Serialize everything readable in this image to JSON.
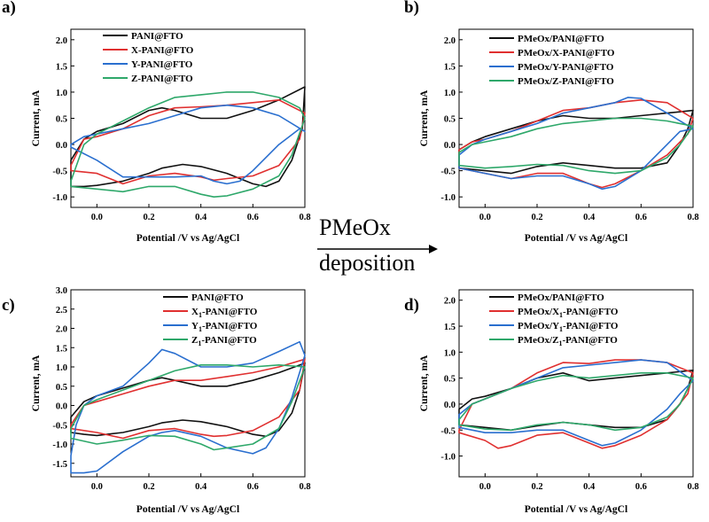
{
  "center": {
    "top_label": "PMeOx",
    "bottom_label": "deposition"
  },
  "colors": {
    "black": "#111111",
    "red": "#e03030",
    "blue": "#2a6fcf",
    "green": "#2ea86a"
  },
  "chart_data": [
    {
      "panel_label": "a)",
      "type": "line",
      "xlabel": "Potential /V vs Ag/AgCl",
      "ylabel": "Current, mA",
      "xlim": [
        -0.1,
        0.8
      ],
      "ylim": [
        -1.2,
        2.2
      ],
      "xticks": [
        "0.0",
        "0.2",
        "0.4",
        "0.6",
        "0.8"
      ],
      "yticks": [
        "-1.0",
        "-0.5",
        "0.0",
        "0.5",
        "1.0",
        "1.5",
        "2.0"
      ],
      "series": [
        {
          "name": "PANI@FTO",
          "color": "#111111",
          "x": [
            -0.1,
            -0.05,
            0.0,
            0.1,
            0.2,
            0.25,
            0.3,
            0.4,
            0.5,
            0.6,
            0.7,
            0.8,
            0.79,
            0.75,
            0.7,
            0.65,
            0.6,
            0.5,
            0.4,
            0.33,
            0.25,
            0.2,
            0.1,
            0.0,
            -0.05,
            -0.1
          ],
          "y": [
            -0.3,
            0.1,
            0.25,
            0.4,
            0.65,
            0.7,
            0.65,
            0.5,
            0.5,
            0.65,
            0.85,
            1.1,
            0.3,
            -0.3,
            -0.7,
            -0.8,
            -0.75,
            -0.55,
            -0.42,
            -0.38,
            -0.45,
            -0.55,
            -0.7,
            -0.78,
            -0.8,
            -0.8
          ]
        },
        {
          "name": "X-PANI@FTO",
          "color": "#e03030",
          "x": [
            -0.1,
            -0.05,
            0.0,
            0.1,
            0.2,
            0.3,
            0.4,
            0.5,
            0.6,
            0.7,
            0.8,
            0.78,
            0.7,
            0.6,
            0.5,
            0.45,
            0.4,
            0.3,
            0.2,
            0.1,
            0.0,
            -0.1
          ],
          "y": [
            -0.4,
            0.1,
            0.15,
            0.3,
            0.55,
            0.7,
            0.72,
            0.75,
            0.8,
            0.85,
            0.6,
            0.1,
            -0.4,
            -0.6,
            -0.65,
            -0.68,
            -0.62,
            -0.55,
            -0.6,
            -0.75,
            -0.55,
            -0.5
          ]
        },
        {
          "name": "Y-PANI@FTO",
          "color": "#2a6fcf",
          "x": [
            -0.1,
            -0.05,
            0.0,
            0.1,
            0.2,
            0.3,
            0.4,
            0.5,
            0.6,
            0.7,
            0.8,
            0.78,
            0.7,
            0.6,
            0.55,
            0.5,
            0.45,
            0.4,
            0.3,
            0.2,
            0.1,
            0.0,
            -0.1
          ],
          "y": [
            0.0,
            0.15,
            0.2,
            0.3,
            0.4,
            0.55,
            0.7,
            0.75,
            0.7,
            0.55,
            0.25,
            0.3,
            0.0,
            -0.5,
            -0.7,
            -0.75,
            -0.7,
            -0.6,
            -0.62,
            -0.62,
            -0.62,
            -0.3,
            -0.05
          ]
        },
        {
          "name": "Z-PANI@FTO",
          "color": "#2ea86a",
          "x": [
            -0.1,
            -0.05,
            0.0,
            0.1,
            0.2,
            0.3,
            0.4,
            0.5,
            0.6,
            0.7,
            0.78,
            0.8,
            0.75,
            0.7,
            0.6,
            0.5,
            0.45,
            0.4,
            0.3,
            0.2,
            0.1,
            0.0,
            -0.1
          ],
          "y": [
            -0.7,
            0.0,
            0.2,
            0.45,
            0.7,
            0.9,
            0.95,
            1.0,
            1.0,
            0.9,
            0.7,
            0.5,
            -0.2,
            -0.6,
            -0.85,
            -0.98,
            -1.0,
            -0.95,
            -0.8,
            -0.8,
            -0.9,
            -0.85,
            -0.8
          ]
        }
      ]
    },
    {
      "panel_label": "b)",
      "type": "line",
      "xlabel": "Potential /V vs Ag/AgCl",
      "ylabel": "Current, mA",
      "xlim": [
        -0.1,
        0.8
      ],
      "ylim": [
        -1.2,
        2.2
      ],
      "xticks": [
        "0.0",
        "0.2",
        "0.4",
        "0.6",
        "0.8"
      ],
      "yticks": [
        "-1.0",
        "-0.5",
        "0.0",
        "0.5",
        "1.0",
        "1.5",
        "2.0"
      ],
      "series": [
        {
          "name": "PMeOx/PANI@FTO",
          "color": "#111111",
          "x": [
            -0.1,
            -0.05,
            0.0,
            0.1,
            0.2,
            0.3,
            0.4,
            0.5,
            0.6,
            0.7,
            0.8,
            0.78,
            0.75,
            0.7,
            0.6,
            0.5,
            0.4,
            0.3,
            0.2,
            0.1,
            0.0,
            -0.1
          ],
          "y": [
            -0.1,
            0.05,
            0.15,
            0.3,
            0.45,
            0.55,
            0.5,
            0.5,
            0.55,
            0.6,
            0.65,
            0.3,
            0.0,
            -0.35,
            -0.45,
            -0.45,
            -0.4,
            -0.35,
            -0.42,
            -0.55,
            -0.5,
            -0.45
          ]
        },
        {
          "name": "PMeOx/X-PANI@FTO",
          "color": "#e03030",
          "x": [
            -0.1,
            -0.05,
            0.0,
            0.1,
            0.2,
            0.3,
            0.4,
            0.5,
            0.6,
            0.7,
            0.8,
            0.78,
            0.7,
            0.6,
            0.5,
            0.45,
            0.4,
            0.3,
            0.2,
            0.1,
            0.0,
            -0.1
          ],
          "y": [
            -0.1,
            0.05,
            0.1,
            0.25,
            0.45,
            0.65,
            0.7,
            0.8,
            0.85,
            0.8,
            0.5,
            0.2,
            -0.2,
            -0.5,
            -0.75,
            -0.82,
            -0.75,
            -0.55,
            -0.55,
            -0.65,
            -0.55,
            -0.45
          ]
        },
        {
          "name": "PMeOx/Y-PANI@FTO",
          "color": "#2a6fcf",
          "x": [
            -0.1,
            -0.05,
            0.0,
            0.1,
            0.2,
            0.3,
            0.4,
            0.5,
            0.55,
            0.6,
            0.7,
            0.8,
            0.75,
            0.7,
            0.6,
            0.5,
            0.45,
            0.4,
            0.3,
            0.2,
            0.1,
            0.0,
            -0.1
          ],
          "y": [
            -0.2,
            0.0,
            0.1,
            0.25,
            0.4,
            0.6,
            0.7,
            0.8,
            0.9,
            0.88,
            0.6,
            0.3,
            0.25,
            0.0,
            -0.5,
            -0.8,
            -0.85,
            -0.75,
            -0.6,
            -0.6,
            -0.65,
            -0.55,
            -0.45
          ]
        },
        {
          "name": "PMeOx/Z-PANI@FTO",
          "color": "#2ea86a",
          "x": [
            -0.1,
            -0.05,
            0.0,
            0.1,
            0.2,
            0.3,
            0.4,
            0.5,
            0.6,
            0.7,
            0.8,
            0.75,
            0.7,
            0.6,
            0.5,
            0.4,
            0.3,
            0.2,
            0.1,
            0.0,
            -0.1
          ],
          "y": [
            -0.15,
            0.0,
            0.05,
            0.15,
            0.3,
            0.4,
            0.45,
            0.5,
            0.5,
            0.45,
            0.35,
            0.0,
            -0.25,
            -0.5,
            -0.55,
            -0.5,
            -0.4,
            -0.38,
            -0.42,
            -0.45,
            -0.4
          ]
        }
      ]
    },
    {
      "panel_label": "c)",
      "type": "line",
      "xlabel": "Potential /V vs Ag/AgCl",
      "ylabel": "Current, mA",
      "xlim": [
        -0.1,
        0.8
      ],
      "ylim": [
        -1.85,
        3.0
      ],
      "xticks": [
        "0.0",
        "0.2",
        "0.4",
        "0.6",
        "0.8"
      ],
      "yticks": [
        "-1.5",
        "-1.0",
        "-0.5",
        "0.0",
        "0.5",
        "1.0",
        "1.5",
        "2.0",
        "2.5",
        "3.0"
      ],
      "series": [
        {
          "name": "PANI@FTO",
          "color": "#111111",
          "x": [
            -0.1,
            -0.05,
            0.0,
            0.1,
            0.2,
            0.25,
            0.3,
            0.4,
            0.5,
            0.6,
            0.7,
            0.8,
            0.78,
            0.75,
            0.7,
            0.65,
            0.6,
            0.5,
            0.4,
            0.33,
            0.25,
            0.2,
            0.1,
            0.0,
            -0.05,
            -0.1
          ],
          "y": [
            -0.3,
            0.1,
            0.25,
            0.45,
            0.65,
            0.72,
            0.65,
            0.5,
            0.5,
            0.65,
            0.85,
            1.1,
            0.4,
            -0.2,
            -0.65,
            -0.8,
            -0.75,
            -0.55,
            -0.42,
            -0.38,
            -0.45,
            -0.55,
            -0.7,
            -0.78,
            -0.75,
            -0.7
          ]
        },
        {
          "name": "X1-PANI@FTO",
          "color": "#e03030",
          "x": [
            -0.1,
            -0.05,
            0.0,
            0.1,
            0.2,
            0.3,
            0.4,
            0.5,
            0.6,
            0.7,
            0.8,
            0.78,
            0.7,
            0.6,
            0.5,
            0.45,
            0.4,
            0.3,
            0.2,
            0.1,
            0.0,
            -0.1
          ],
          "y": [
            -0.5,
            0.0,
            0.1,
            0.3,
            0.5,
            0.65,
            0.65,
            0.75,
            0.85,
            1.0,
            1.2,
            0.4,
            -0.3,
            -0.65,
            -0.78,
            -0.8,
            -0.75,
            -0.6,
            -0.65,
            -0.85,
            -0.7,
            -0.6
          ]
        },
        {
          "name": "Y1-PANI@FTO",
          "color": "#2a6fcf",
          "x": [
            -0.1,
            -0.08,
            -0.05,
            0.0,
            0.1,
            0.2,
            0.25,
            0.3,
            0.4,
            0.5,
            0.6,
            0.7,
            0.78,
            0.8,
            0.75,
            0.7,
            0.65,
            0.6,
            0.5,
            0.4,
            0.3,
            0.25,
            0.2,
            0.1,
            0.0,
            -0.05,
            -0.1
          ],
          "y": [
            -1.3,
            -0.5,
            0.0,
            0.25,
            0.5,
            1.1,
            1.45,
            1.35,
            1.0,
            1.0,
            1.1,
            1.4,
            1.65,
            1.3,
            0.2,
            -0.6,
            -1.1,
            -1.25,
            -1.1,
            -0.8,
            -0.65,
            -0.7,
            -0.8,
            -1.2,
            -1.7,
            -1.75,
            -1.75
          ]
        },
        {
          "name": "Z1-PANI@FTO",
          "color": "#2ea86a",
          "x": [
            -0.1,
            -0.05,
            0.0,
            0.1,
            0.2,
            0.3,
            0.4,
            0.5,
            0.6,
            0.7,
            0.8,
            0.75,
            0.7,
            0.6,
            0.5,
            0.45,
            0.4,
            0.3,
            0.2,
            0.1,
            0.0,
            -0.1
          ],
          "y": [
            -0.6,
            0.0,
            0.15,
            0.4,
            0.65,
            0.9,
            1.05,
            1.05,
            1.0,
            1.05,
            1.0,
            0.1,
            -0.6,
            -1.0,
            -1.1,
            -1.15,
            -1.0,
            -0.8,
            -0.78,
            -0.9,
            -1.0,
            -0.85
          ]
        }
      ]
    },
    {
      "panel_label": "d)",
      "type": "line",
      "xlabel": "Potential /V vs Ag/AgCl",
      "ylabel": "Current, mA",
      "xlim": [
        -0.1,
        0.8
      ],
      "ylim": [
        -1.4,
        2.2
      ],
      "xticks": [
        "0.0",
        "0.2",
        "0.4",
        "0.6",
        "0.8"
      ],
      "yticks": [
        "-1.0",
        "-0.5",
        "0.0",
        "0.5",
        "1.0",
        "1.5",
        "2.0"
      ],
      "series": [
        {
          "name": "PMeOx/PANI@FTO",
          "color": "#111111",
          "x": [
            -0.1,
            -0.05,
            0.0,
            0.1,
            0.2,
            0.3,
            0.4,
            0.5,
            0.6,
            0.7,
            0.8,
            0.78,
            0.75,
            0.7,
            0.6,
            0.5,
            0.4,
            0.3,
            0.2,
            0.1,
            0.0,
            -0.1
          ],
          "y": [
            -0.1,
            0.1,
            0.15,
            0.3,
            0.5,
            0.6,
            0.45,
            0.5,
            0.55,
            0.6,
            0.65,
            0.3,
            0.0,
            -0.3,
            -0.45,
            -0.45,
            -0.4,
            -0.35,
            -0.42,
            -0.5,
            -0.45,
            -0.4
          ]
        },
        {
          "name": "PMeOx/X1-PANI@FTO",
          "color": "#e03030",
          "x": [
            -0.1,
            -0.05,
            0.0,
            0.1,
            0.2,
            0.3,
            0.4,
            0.5,
            0.6,
            0.7,
            0.8,
            0.78,
            0.7,
            0.6,
            0.5,
            0.45,
            0.4,
            0.3,
            0.2,
            0.1,
            0.05,
            0.0,
            -0.1
          ],
          "y": [
            -0.5,
            0.0,
            0.1,
            0.3,
            0.6,
            0.8,
            0.78,
            0.85,
            0.85,
            0.8,
            0.6,
            0.2,
            -0.3,
            -0.6,
            -0.8,
            -0.85,
            -0.75,
            -0.55,
            -0.6,
            -0.8,
            -0.85,
            -0.7,
            -0.55
          ]
        },
        {
          "name": "PMeOx/Y1-PANI@FTO",
          "color": "#2a6fcf",
          "x": [
            -0.1,
            -0.05,
            0.0,
            0.1,
            0.2,
            0.3,
            0.4,
            0.5,
            0.6,
            0.7,
            0.8,
            0.75,
            0.7,
            0.6,
            0.5,
            0.45,
            0.4,
            0.3,
            0.2,
            0.1,
            0.0,
            -0.1
          ],
          "y": [
            -0.2,
            0.0,
            0.1,
            0.3,
            0.5,
            0.7,
            0.75,
            0.8,
            0.85,
            0.8,
            0.45,
            0.2,
            -0.1,
            -0.5,
            -0.75,
            -0.8,
            -0.7,
            -0.5,
            -0.5,
            -0.55,
            -0.55,
            -0.45
          ]
        },
        {
          "name": "PMeOx/Z1-PANI@FTO",
          "color": "#2ea86a",
          "x": [
            -0.1,
            -0.05,
            0.0,
            0.1,
            0.2,
            0.3,
            0.4,
            0.5,
            0.6,
            0.7,
            0.8,
            0.75,
            0.7,
            0.6,
            0.5,
            0.4,
            0.3,
            0.2,
            0.1,
            0.0,
            -0.1
          ],
          "y": [
            -0.3,
            0.0,
            0.1,
            0.3,
            0.45,
            0.55,
            0.5,
            0.55,
            0.6,
            0.6,
            0.5,
            0.0,
            -0.25,
            -0.45,
            -0.5,
            -0.4,
            -0.35,
            -0.4,
            -0.5,
            -0.48,
            -0.4
          ]
        }
      ]
    }
  ]
}
